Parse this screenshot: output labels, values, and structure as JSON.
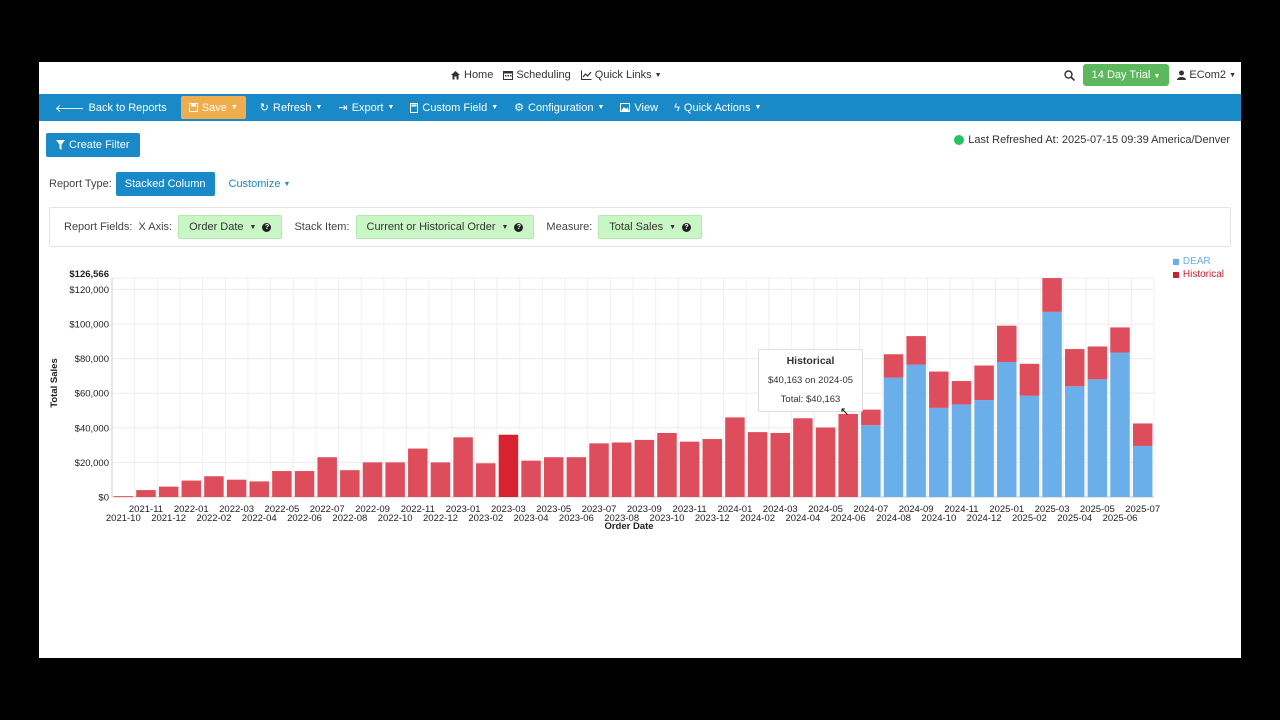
{
  "topnav": {
    "home": "Home",
    "scheduling": "Scheduling",
    "quick_links": "Quick Links",
    "trial": "14 Day Trial",
    "user": "ECom2"
  },
  "toolbar": {
    "back": "Back to Reports",
    "save": "Save",
    "refresh": "Refresh",
    "export": "Export",
    "custom_field": "Custom Field",
    "configuration": "Configuration",
    "view": "View",
    "quick_actions": "Quick Actions"
  },
  "filter_button": "Create Filter",
  "last_refreshed": "Last Refreshed At: 2025-07-15 09:39 America/Denver",
  "report_type": {
    "label": "Report Type:",
    "value": "Stacked Column",
    "customize": "Customize"
  },
  "report_fields": {
    "label": "Report Fields:",
    "x_axis_label": "X Axis:",
    "x_axis_value": "Order Date",
    "stack_label": "Stack Item:",
    "stack_value": "Current or Historical Order",
    "measure_label": "Measure:",
    "measure_value": "Total Sales"
  },
  "tooltip": {
    "title": "Historical",
    "line1": "$40,163 on 2024-05",
    "line2": "Total: $40,163"
  },
  "colors": {
    "dear": "#6aaeea",
    "historical": "#dd4d5c",
    "historical_highlight": "#d6232f",
    "accent": "#1989c8",
    "trial": "#5cb85c"
  },
  "chart_data": {
    "type": "bar",
    "stacked": true,
    "xlabel": "Order Date",
    "ylabel": "Total Sales",
    "ylim": [
      0,
      126566
    ],
    "yticks": [
      "$0",
      "$20,000",
      "$40,000",
      "$60,000",
      "$80,000",
      "$100,000",
      "$120,000",
      "$126,566"
    ],
    "legend_position": "top-right",
    "categories": [
      "2021-10",
      "2021-11",
      "2021-12",
      "2022-01",
      "2022-02",
      "2022-03",
      "2022-04",
      "2022-05",
      "2022-06",
      "2022-07",
      "2022-08",
      "2022-09",
      "2022-10",
      "2022-11",
      "2022-12",
      "2023-01",
      "2023-02",
      "2023-03",
      "2023-04",
      "2023-05",
      "2023-06",
      "2023-07",
      "2023-08",
      "2023-09",
      "2023-10",
      "2023-11",
      "2023-12",
      "2024-01",
      "2024-02",
      "2024-03",
      "2024-04",
      "2024-05",
      "2024-06",
      "2024-07",
      "2024-08",
      "2024-09",
      "2024-10",
      "2024-11",
      "2024-12",
      "2025-01",
      "2025-02",
      "2025-03",
      "2025-04",
      "2025-05",
      "2025-06",
      "2025-07"
    ],
    "series": [
      {
        "name": "DEAR",
        "values": [
          0,
          0,
          0,
          0,
          0,
          0,
          0,
          0,
          0,
          0,
          0,
          0,
          0,
          0,
          0,
          0,
          0,
          0,
          0,
          0,
          0,
          0,
          0,
          0,
          0,
          0,
          0,
          0,
          0,
          0,
          0,
          0,
          0,
          41500,
          69000,
          76500,
          51500,
          53500,
          56000,
          78000,
          58500,
          107000,
          64000,
          68000,
          83500,
          29500
        ]
      },
      {
        "name": "Historical",
        "values": [
          500,
          4000,
          6000,
          9500,
          12000,
          10000,
          9000,
          15000,
          15000,
          23000,
          15500,
          20000,
          20000,
          28000,
          20000,
          34500,
          19500,
          36000,
          21000,
          23000,
          23000,
          31000,
          31500,
          33000,
          37000,
          32000,
          33500,
          46000,
          37500,
          37000,
          45500,
          40163,
          48000,
          9000,
          13500,
          16500,
          21000,
          13500,
          20000,
          21000,
          18500,
          19500,
          21500,
          19000,
          14500,
          13000
        ]
      }
    ]
  }
}
